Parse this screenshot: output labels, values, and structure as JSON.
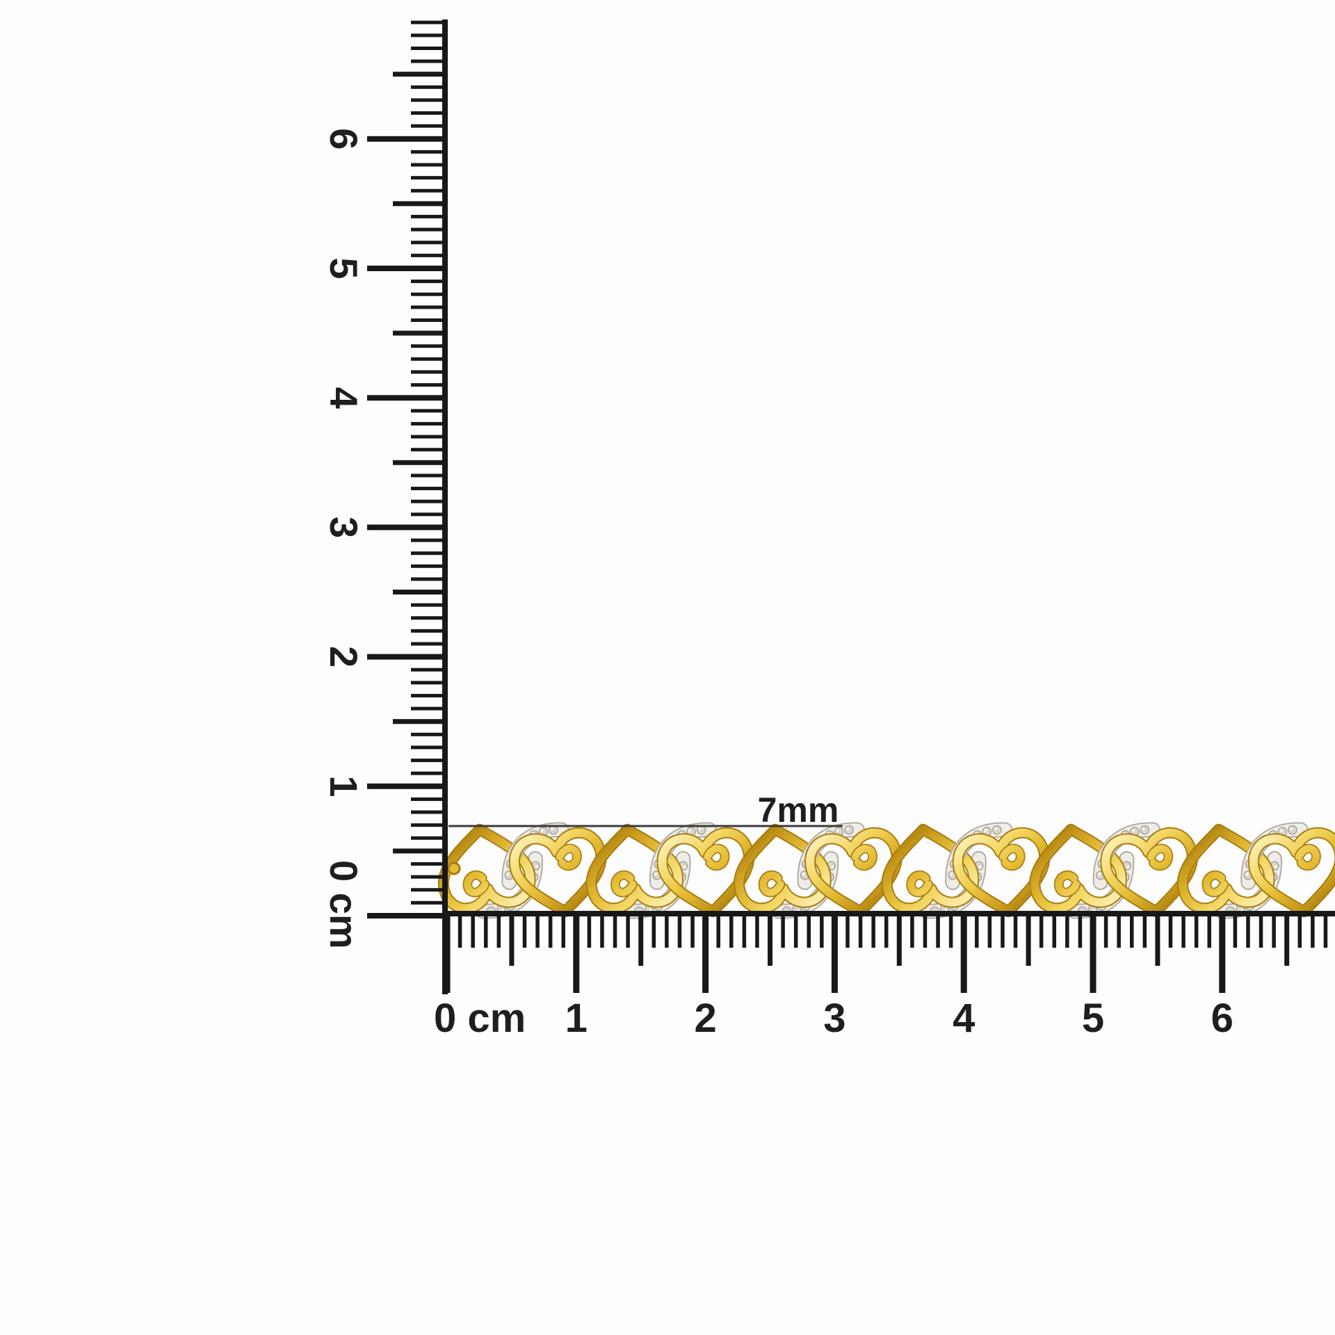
{
  "scene": {
    "background": "#fdfdfd",
    "ruler_color": "#181818",
    "label_color": "#1e1e1e",
    "annotation_line_color": "#3a3a3a"
  },
  "measurement": {
    "label": "7mm"
  },
  "vertical_ruler": {
    "orientation": "vertical",
    "origin_label": "0 cm",
    "cm_labels": [
      "1",
      "2",
      "3",
      "4",
      "5",
      "6"
    ]
  },
  "horizontal_ruler": {
    "orientation": "horizontal",
    "origin_label": "0 cm",
    "cm_labels": [
      "1",
      "2",
      "3",
      "4",
      "5",
      "6"
    ]
  },
  "bracelet": {
    "description": "Yellow gold open heart link bracelet with alternating pave diamond swoosh accents",
    "link_count": 12,
    "colors": {
      "gold_highlight": "#fdf4c6",
      "gold_light": "#f3d867",
      "gold_mid": "#e4bc35",
      "gold_deep": "#c89a1c",
      "gold_shadow": "#9a7208",
      "gold_under": "#a97c12",
      "pave_base": "#efede8",
      "pave_edge": "#b0aca0",
      "stone_fill": "#d9d6cf",
      "stone_edge": "#a8a396",
      "sparkle": "#ffffff"
    }
  }
}
